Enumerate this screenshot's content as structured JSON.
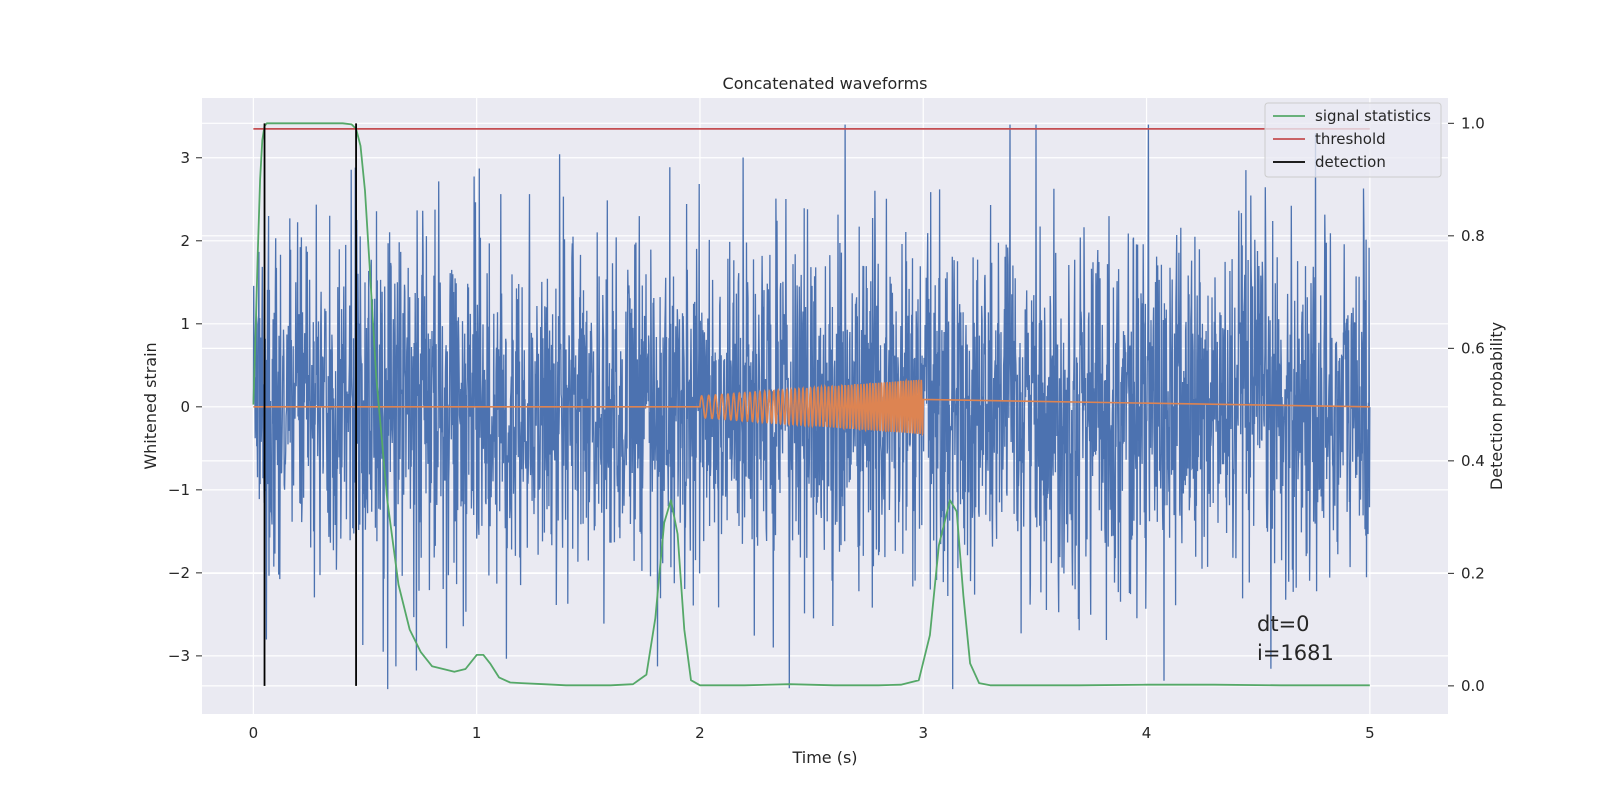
{
  "chart_data": {
    "type": "line",
    "title": "Concatenated waveforms",
    "xlabel": "Time (s)",
    "ylabel": "Whitened strain",
    "y2label": "Detection probability",
    "xlim": [
      -0.23,
      5.35
    ],
    "ylim": [
      -3.7,
      3.72
    ],
    "y2lim": [
      -0.05,
      1.045
    ],
    "x_ticks": [
      0,
      1,
      2,
      3,
      4,
      5
    ],
    "y_ticks": [
      -3,
      -2,
      -1,
      0,
      1,
      2,
      3
    ],
    "y2_ticks": [
      0.0,
      0.2,
      0.4,
      0.6,
      0.8,
      1.0
    ],
    "x_tick_labels": [
      "0",
      "1",
      "2",
      "3",
      "4",
      "5"
    ],
    "y_tick_labels": [
      "−3",
      "−2",
      "−1",
      "0",
      "1",
      "2",
      "3"
    ],
    "y2_tick_labels": [
      "0.0",
      "0.2",
      "0.4",
      "0.6",
      "0.8",
      "1.0"
    ],
    "grid": true,
    "legend_position": "top-right",
    "series": [
      {
        "name": "",
        "axis": "left",
        "color": "#4c72b0",
        "kind": "noise",
        "x_range": [
          0,
          5
        ],
        "sample_rate": 2048,
        "typical_range": [
          -3.2,
          3.2
        ]
      },
      {
        "name": "",
        "axis": "left",
        "color": "#dd8452",
        "kind": "chirp",
        "x_range": [
          0,
          5
        ],
        "chirp_start": 2.0,
        "chirp_end": 3.0,
        "amplitude_start": 0.13,
        "amplitude_end": 0.33
      },
      {
        "name": "signal statistics",
        "axis": "right",
        "color": "#55a868",
        "x": [
          0.0,
          0.01,
          0.02,
          0.03,
          0.04,
          0.05,
          0.06,
          0.08,
          0.1,
          0.2,
          0.3,
          0.4,
          0.44,
          0.46,
          0.48,
          0.5,
          0.52,
          0.55,
          0.6,
          0.65,
          0.7,
          0.75,
          0.8,
          0.85,
          0.9,
          0.95,
          1.0,
          1.03,
          1.06,
          1.1,
          1.15,
          1.2,
          1.3,
          1.4,
          1.5,
          1.6,
          1.7,
          1.76,
          1.8,
          1.84,
          1.87,
          1.9,
          1.93,
          1.96,
          2.0,
          2.2,
          2.4,
          2.6,
          2.8,
          2.9,
          2.98,
          3.03,
          3.07,
          3.12,
          3.15,
          3.18,
          3.21,
          3.25,
          3.3,
          3.5,
          3.7,
          4.0,
          4.3,
          4.6,
          5.0
        ],
        "values": [
          0.5,
          0.63,
          0.77,
          0.9,
          0.97,
          0.995,
          1.0,
          1.0,
          1.0,
          1.0,
          1.0,
          1.0,
          0.998,
          0.99,
          0.96,
          0.88,
          0.75,
          0.55,
          0.33,
          0.18,
          0.1,
          0.06,
          0.035,
          0.03,
          0.025,
          0.03,
          0.055,
          0.055,
          0.04,
          0.015,
          0.006,
          0.005,
          0.003,
          0.001,
          0.001,
          0.001,
          0.003,
          0.02,
          0.12,
          0.29,
          0.33,
          0.27,
          0.1,
          0.01,
          0.001,
          0.001,
          0.003,
          0.001,
          0.001,
          0.002,
          0.01,
          0.09,
          0.25,
          0.33,
          0.31,
          0.16,
          0.04,
          0.005,
          0.001,
          0.001,
          0.001,
          0.002,
          0.002,
          0.001,
          0.001
        ]
      },
      {
        "name": "threshold",
        "axis": "right",
        "color": "#c44e52",
        "x": [
          0,
          5
        ],
        "values": [
          0.99,
          0.99
        ]
      },
      {
        "name": "detection",
        "axis": "right",
        "color": "#000000",
        "kind": "vlines",
        "x": [
          0.05,
          0.46
        ],
        "values": [
          0.0,
          1.0
        ]
      }
    ],
    "annotations": [
      "dt=0",
      "i=1681"
    ],
    "annotation_x": 4.5,
    "annotation_y": -2.6
  }
}
